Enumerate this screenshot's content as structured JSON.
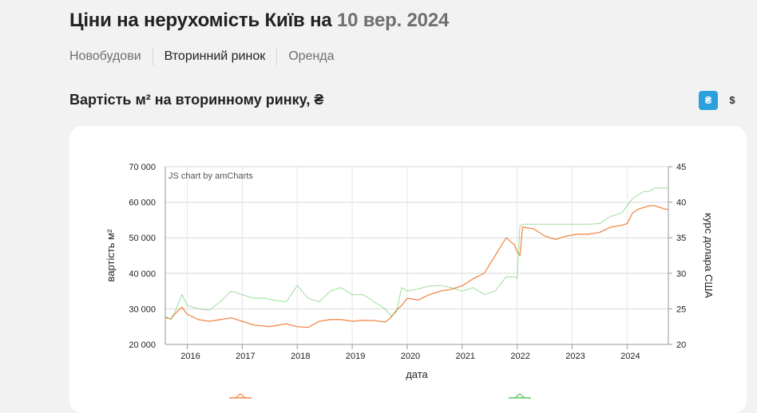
{
  "header": {
    "title_main": "Ціни на нерухомість Київ на",
    "title_date": "10 вер. 2024"
  },
  "tabs": [
    {
      "label": "Новобудови",
      "active": false
    },
    {
      "label": "Вторинний ринок",
      "active": true
    },
    {
      "label": "Оренда",
      "active": false
    }
  ],
  "section": {
    "title": "Вартість м² на вторинному ринку, ₴"
  },
  "currency_toggle": {
    "uah": "₴",
    "usd": "$",
    "selected": "uah"
  },
  "colors": {
    "accent": "#2aa0dc",
    "price_line": "#f08a4b",
    "rate_line": "#5cc85c"
  },
  "chart_data": {
    "type": "line",
    "watermark": "JS chart by amCharts",
    "xlabel": "дата",
    "ylabel_left": "вартість м²",
    "ylabel_right": "курс долара США",
    "y_left": {
      "min": 20000,
      "max": 70000,
      "ticks": [
        "20 000",
        "30 000",
        "40 000",
        "50 000",
        "60 000",
        "70 000"
      ],
      "tick_values": [
        20000,
        30000,
        40000,
        50000,
        60000,
        70000
      ]
    },
    "y_right": {
      "min": 20,
      "max": 45,
      "ticks": [
        "20",
        "25",
        "30",
        "35",
        "40",
        "45"
      ],
      "tick_values": [
        20,
        25,
        30,
        35,
        40,
        45
      ]
    },
    "x_range": [
      2015.6,
      2024.75
    ],
    "x_ticks": [
      "2016",
      "2017",
      "2018",
      "2019",
      "2020",
      "2021",
      "2022",
      "2023",
      "2024"
    ],
    "x_tick_values": [
      2016,
      2017,
      2018,
      2019,
      2020,
      2021,
      2022,
      2023,
      2024
    ],
    "grid": true,
    "series": [
      {
        "axis": "left",
        "x": [
          2015.6,
          2015.7,
          2015.8,
          2015.9,
          2016.0,
          2016.2,
          2016.4,
          2016.6,
          2016.8,
          2017.0,
          2017.2,
          2017.5,
          2017.8,
          2018.0,
          2018.2,
          2018.4,
          2018.6,
          2018.8,
          2019.0,
          2019.2,
          2019.4,
          2019.6,
          2019.7,
          2019.8,
          2019.9,
          2020.0,
          2020.2,
          2020.4,
          2020.6,
          2020.8,
          2021.0,
          2021.2,
          2021.4,
          2021.6,
          2021.8,
          2021.95,
          2022.0,
          2022.05,
          2022.1,
          2022.3,
          2022.5,
          2022.7,
          2022.9,
          2023.1,
          2023.3,
          2023.5,
          2023.7,
          2023.9,
          2024.0,
          2024.1,
          2024.2,
          2024.3,
          2024.4,
          2024.5,
          2024.6,
          2024.7,
          2024.75
        ],
        "values": [
          27500,
          27200,
          29000,
          30500,
          28500,
          27000,
          26500,
          27000,
          27500,
          26500,
          25500,
          25000,
          25800,
          25000,
          24800,
          26500,
          27000,
          27000,
          26500,
          26800,
          26700,
          26300,
          27500,
          29500,
          31000,
          33000,
          32500,
          34000,
          35000,
          35500,
          36500,
          38500,
          40000,
          45000,
          50000,
          48000,
          46000,
          45000,
          53000,
          52500,
          50500,
          49500,
          50500,
          51000,
          51000,
          51500,
          53000,
          53500,
          54000,
          57000,
          58000,
          58500,
          59000,
          59000,
          58500,
          58000,
          58000
        ]
      },
      {
        "axis": "right",
        "x": [
          2015.6,
          2015.7,
          2015.8,
          2015.9,
          2016.0,
          2016.2,
          2016.4,
          2016.6,
          2016.8,
          2017.0,
          2017.2,
          2017.4,
          2017.6,
          2017.8,
          2018.0,
          2018.2,
          2018.4,
          2018.6,
          2018.8,
          2019.0,
          2019.2,
          2019.4,
          2019.6,
          2019.7,
          2019.8,
          2019.9,
          2020.0,
          2020.2,
          2020.4,
          2020.6,
          2020.8,
          2021.0,
          2021.2,
          2021.4,
          2021.6,
          2021.8,
          2021.95,
          2022.0,
          2022.05,
          2022.1,
          2022.3,
          2022.5,
          2022.7,
          2022.9,
          2023.1,
          2023.3,
          2023.5,
          2023.7,
          2023.9,
          2024.0,
          2024.1,
          2024.2,
          2024.3,
          2024.4,
          2024.5,
          2024.6,
          2024.7,
          2024.75
        ],
        "values": [
          24.0,
          23.5,
          25.0,
          27.0,
          25.5,
          25.0,
          24.8,
          26.0,
          27.5,
          27.0,
          26.5,
          26.5,
          26.2,
          26.0,
          28.3,
          26.5,
          26.0,
          27.5,
          28.0,
          27.0,
          27.0,
          26.0,
          25.0,
          24.0,
          24.5,
          28.0,
          27.5,
          27.8,
          28.2,
          28.3,
          28.0,
          27.5,
          28.0,
          27.0,
          27.5,
          29.5,
          29.5,
          29.3,
          36.6,
          36.9,
          36.9,
          36.9,
          36.9,
          36.9,
          36.9,
          36.9,
          37.0,
          38.0,
          38.5,
          39.5,
          40.5,
          41.0,
          41.5,
          41.5,
          42.0,
          42.0,
          42.0,
          42.0
        ]
      }
    ]
  }
}
